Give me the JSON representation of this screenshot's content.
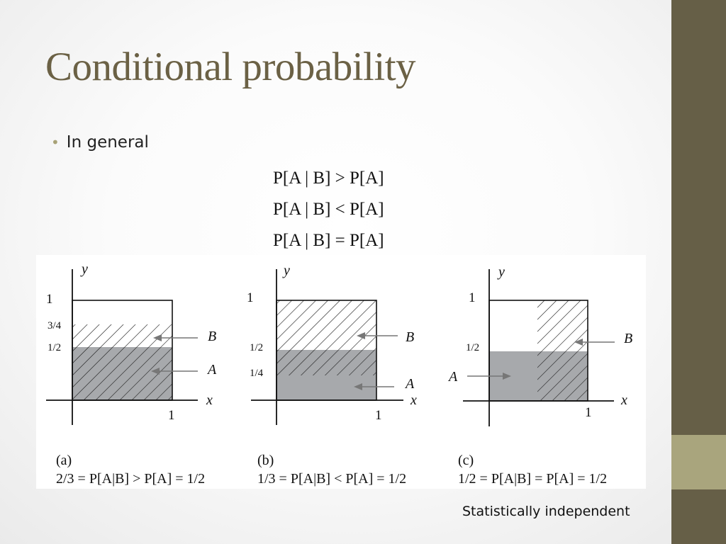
{
  "title": "Conditional probability",
  "bullet": "In general",
  "equations": [
    "P[A | B] > P[A]",
    "P[A | B] < P[A]",
    "P[A | B] = P[A]"
  ],
  "diagrams": [
    {
      "axis_y": "y",
      "axis_x": "x",
      "tick_x": "1",
      "tick_y_top": "1",
      "tick_upper": "3/4",
      "tick_lower": "1/2",
      "label_b": "B",
      "label_a": "A",
      "caption_letter": "(a)",
      "caption_text": "2/3 = P[A|B] > P[A] = 1/2",
      "region_a": {
        "x": [
          0,
          1
        ],
        "y": [
          0,
          0.5
        ]
      },
      "region_b": {
        "x": [
          0,
          1
        ],
        "y": [
          0,
          0.75
        ]
      }
    },
    {
      "axis_y": "y",
      "axis_x": "x",
      "tick_x": "1",
      "tick_y_top": "1",
      "tick_upper": "1/2",
      "tick_lower": "1/4",
      "label_b": "B",
      "label_a": "A",
      "caption_letter": "(b)",
      "caption_text": "1/3 = P[A|B] < P[A] = 1/2",
      "region_a": {
        "x": [
          0,
          1
        ],
        "y": [
          0,
          0.5
        ]
      },
      "region_b": {
        "x": [
          0,
          1
        ],
        "y": [
          0.25,
          1
        ]
      }
    },
    {
      "axis_y": "y",
      "axis_x": "x",
      "tick_x": "1",
      "tick_y_top": "1",
      "tick_half": "1/2",
      "label_b": "B",
      "label_a": "A",
      "caption_letter": "(c)",
      "caption_text": "1/2 = P[A|B] = P[A] = 1/2",
      "region_a": {
        "x": [
          0,
          1
        ],
        "y": [
          0,
          0.5
        ]
      },
      "region_b": {
        "x": [
          0.5,
          1
        ],
        "y": [
          0,
          1
        ]
      }
    }
  ],
  "footnote": "Statistically independent",
  "colors": {
    "title": "#6b6145",
    "bullet_dot": "#a8a277",
    "sidebar_dark": "#665f47",
    "sidebar_light": "#a9a57d",
    "region_a_fill": "#a7a9ac"
  }
}
